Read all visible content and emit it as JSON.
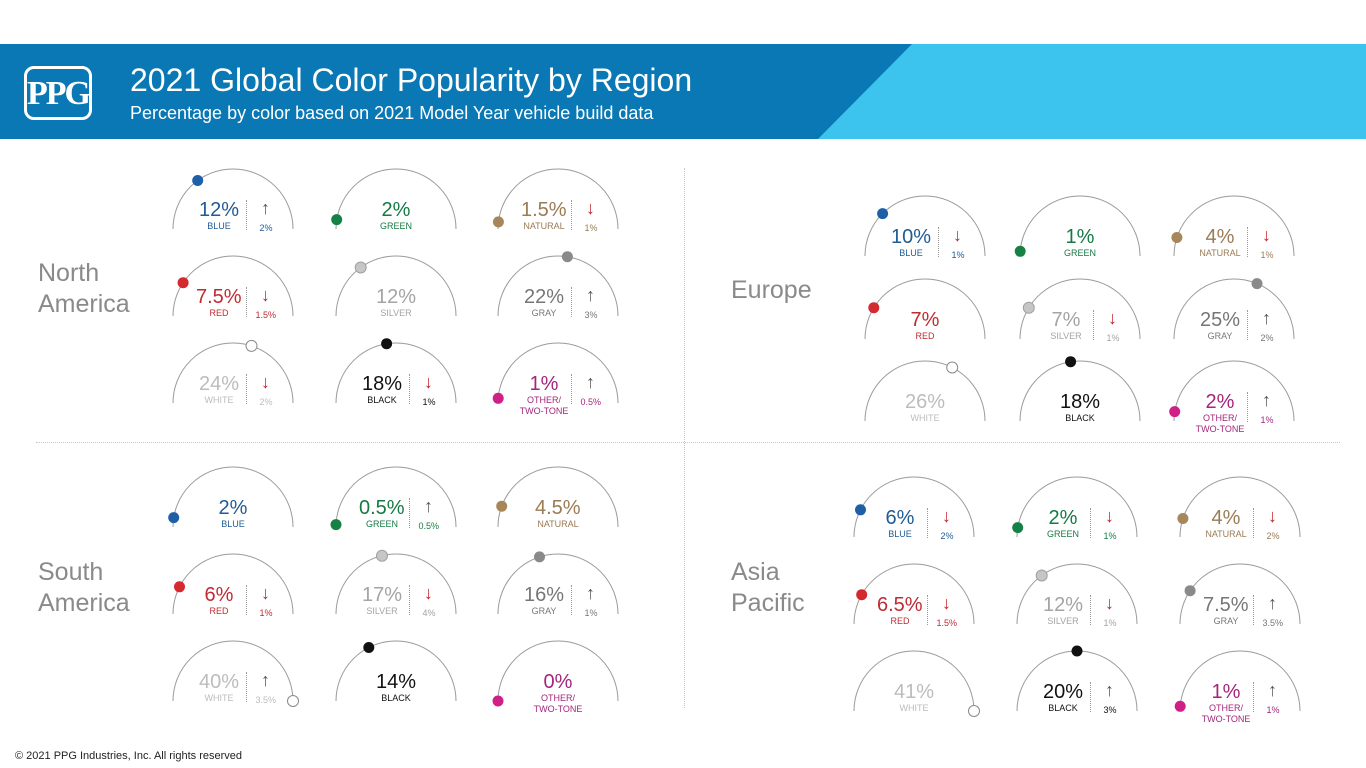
{
  "header": {
    "title": "2021 Global Color Popularity by Region",
    "subtitle": "Percentage by color based on 2021 Model Year vehicle build data",
    "logo": "PPG"
  },
  "footer": {
    "copyright": "© 2021 PPG Industries, Inc. All rights reserved"
  },
  "colors": {
    "banner_dark": "#0a78b4",
    "banner_light": "#3cc3ee",
    "arc": "#9a9a9a",
    "BLUE": {
      "dot": "#1e5fa8",
      "text": "#1f5b94"
    },
    "GREEN": {
      "dot": "#168045",
      "text": "#157a43"
    },
    "NATURAL": {
      "dot": "#a8865c",
      "text": "#9a7b55"
    },
    "RED": {
      "dot": "#d42a2f",
      "text": "#c02a32"
    },
    "SILVER": {
      "dot": "#c6c6c6",
      "text": "#a4a4a4"
    },
    "GRAY": {
      "dot": "#8a8a8a",
      "text": "#767676"
    },
    "WHITE": {
      "dot": "#ffffff",
      "text": "#bcbcbc"
    },
    "BLACK": {
      "dot": "#111111",
      "text": "#111111"
    },
    "OTHER": {
      "dot": "#d01f87",
      "text": "#a4257b"
    }
  },
  "chart_data": {
    "type": "gauge",
    "title": "2021 Global Color Popularity by Region",
    "subtitle": "Percentage by color based on 2021 Model Year vehicle build data",
    "regions": [
      {
        "name": "North\nAmerica",
        "colors": [
          {
            "key": "BLUE",
            "label": "BLUE",
            "value": 12,
            "display": "12%",
            "change": "2%",
            "dir": "up"
          },
          {
            "key": "GREEN",
            "label": "GREEN",
            "value": 2,
            "display": "2%",
            "change": "",
            "dir": ""
          },
          {
            "key": "NATURAL",
            "label": "NATURAL",
            "value": 1.5,
            "display": "1.5%",
            "change": "1%",
            "dir": "down"
          },
          {
            "key": "RED",
            "label": "RED",
            "value": 7.5,
            "display": "7.5%",
            "change": "1.5%",
            "dir": "down"
          },
          {
            "key": "SILVER",
            "label": "SILVER",
            "value": 12,
            "display": "12%",
            "change": "",
            "dir": ""
          },
          {
            "key": "GRAY",
            "label": "GRAY",
            "value": 22,
            "display": "22%",
            "change": "3%",
            "dir": "up"
          },
          {
            "key": "WHITE",
            "label": "WHITE",
            "value": 24,
            "display": "24%",
            "change": "2%",
            "dir": "down"
          },
          {
            "key": "BLACK",
            "label": "BLACK",
            "value": 18,
            "display": "18%",
            "change": "1%",
            "dir": "down"
          },
          {
            "key": "OTHER",
            "label": "OTHER/\nTWO-TONE",
            "value": 1,
            "display": "1%",
            "change": "0.5%",
            "dir": "up"
          }
        ]
      },
      {
        "name": "Europe",
        "colors": [
          {
            "key": "BLUE",
            "label": "BLUE",
            "value": 10,
            "display": "10%",
            "change": "1%",
            "dir": "down"
          },
          {
            "key": "GREEN",
            "label": "GREEN",
            "value": 1,
            "display": "1%",
            "change": "",
            "dir": ""
          },
          {
            "key": "NATURAL",
            "label": "NATURAL",
            "value": 4,
            "display": "4%",
            "change": "1%",
            "dir": "down"
          },
          {
            "key": "RED",
            "label": "RED",
            "value": 7,
            "display": "7%",
            "change": "",
            "dir": ""
          },
          {
            "key": "SILVER",
            "label": "SILVER",
            "value": 7,
            "display": "7%",
            "change": "1%",
            "dir": "down"
          },
          {
            "key": "GRAY",
            "label": "GRAY",
            "value": 25,
            "display": "25%",
            "change": "2%",
            "dir": "up"
          },
          {
            "key": "WHITE",
            "label": "WHITE",
            "value": 26,
            "display": "26%",
            "change": "",
            "dir": ""
          },
          {
            "key": "BLACK",
            "label": "BLACK",
            "value": 18,
            "display": "18%",
            "change": "",
            "dir": ""
          },
          {
            "key": "OTHER",
            "label": "OTHER/\nTWO-TONE",
            "value": 2,
            "display": "2%",
            "change": "1%",
            "dir": "up"
          }
        ]
      },
      {
        "name": "South\nAmerica",
        "colors": [
          {
            "key": "BLUE",
            "label": "BLUE",
            "value": 2,
            "display": "2%",
            "change": "",
            "dir": ""
          },
          {
            "key": "GREEN",
            "label": "GREEN",
            "value": 0.5,
            "display": "0.5%",
            "change": "0.5%",
            "dir": "up"
          },
          {
            "key": "NATURAL",
            "label": "NATURAL",
            "value": 4.5,
            "display": "4.5%",
            "change": "",
            "dir": ""
          },
          {
            "key": "RED",
            "label": "RED",
            "value": 6,
            "display": "6%",
            "change": "1%",
            "dir": "down"
          },
          {
            "key": "SILVER",
            "label": "SILVER",
            "value": 17,
            "display": "17%",
            "change": "4%",
            "dir": "down"
          },
          {
            "key": "GRAY",
            "label": "GRAY",
            "value": 16,
            "display": "16%",
            "change": "1%",
            "dir": "up"
          },
          {
            "key": "WHITE",
            "label": "WHITE",
            "value": 40,
            "display": "40%",
            "change": "3.5%",
            "dir": "up"
          },
          {
            "key": "BLACK",
            "label": "BLACK",
            "value": 14,
            "display": "14%",
            "change": "",
            "dir": ""
          },
          {
            "key": "OTHER",
            "label": "OTHER/\nTWO-TONE",
            "value": 0,
            "display": "0%",
            "change": "",
            "dir": ""
          }
        ]
      },
      {
        "name": "Asia\nPacific",
        "colors": [
          {
            "key": "BLUE",
            "label": "BLUE",
            "value": 6,
            "display": "6%",
            "change": "2%",
            "dir": "down"
          },
          {
            "key": "GREEN",
            "label": "GREEN",
            "value": 2,
            "display": "2%",
            "change": "1%",
            "dir": "down"
          },
          {
            "key": "NATURAL",
            "label": "NATURAL",
            "value": 4,
            "display": "4%",
            "change": "2%",
            "dir": "down"
          },
          {
            "key": "RED",
            "label": "RED",
            "value": 6.5,
            "display": "6.5%",
            "change": "1.5%",
            "dir": "down"
          },
          {
            "key": "SILVER",
            "label": "SILVER",
            "value": 12,
            "display": "12%",
            "change": "1%",
            "dir": "down"
          },
          {
            "key": "GRAY",
            "label": "GRAY",
            "value": 7.5,
            "display": "7.5%",
            "change": "3.5%",
            "dir": "up"
          },
          {
            "key": "WHITE",
            "label": "WHITE",
            "value": 41,
            "display": "41%",
            "change": "",
            "dir": ""
          },
          {
            "key": "BLACK",
            "label": "BLACK",
            "value": 20,
            "display": "20%",
            "change": "3%",
            "dir": "up"
          },
          {
            "key": "OTHER",
            "label": "OTHER/\nTWO-TONE",
            "value": 1,
            "display": "1%",
            "change": "1%",
            "dir": "up"
          }
        ]
      }
    ]
  }
}
